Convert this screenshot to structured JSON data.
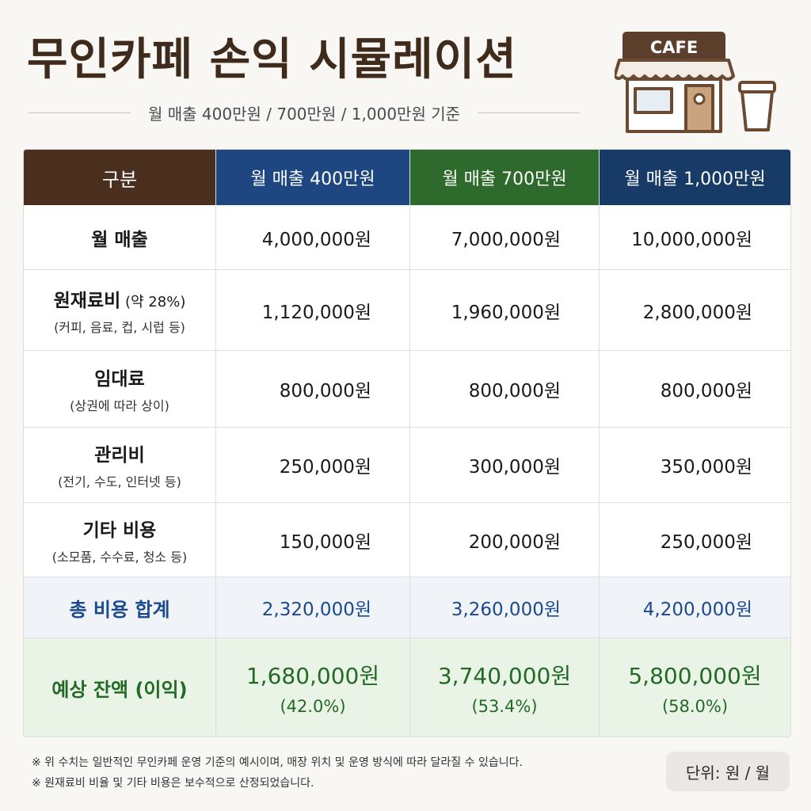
{
  "title": "무인카페 손익 시뮬레이션",
  "subtitle": "월 매출 400만원 / 700만원 / 1,000만원 기준",
  "cafe_sign": "CAFE",
  "table": {
    "headers": [
      "구분",
      "월 매출 400만원",
      "월 매출 700만원",
      "월 매출 1,000만원"
    ],
    "rows": [
      {
        "label": "월 매출",
        "paren": "",
        "note": "",
        "values": [
          "4,000,000원",
          "7,000,000원",
          "10,000,000원"
        ]
      },
      {
        "label": "원재료비",
        "paren": " (약 28%)",
        "note": "(커피, 음료, 컵, 시럽 등)",
        "values": [
          "1,120,000원",
          "1,960,000원",
          "2,800,000원"
        ]
      },
      {
        "label": "임대료",
        "paren": "",
        "note": "(상권에 따라 상이)",
        "values": [
          "800,000원",
          "800,000원",
          "800,000원"
        ]
      },
      {
        "label": "관리비",
        "paren": "",
        "note": "(전기, 수도, 인터넷 등)",
        "values": [
          "250,000원",
          "300,000원",
          "350,000원"
        ]
      },
      {
        "label": "기타 비용",
        "paren": "",
        "note": "(소모품, 수수료, 청소 등)",
        "values": [
          "150,000원",
          "200,000원",
          "250,000원"
        ]
      }
    ],
    "total": {
      "label": "총 비용 합계",
      "values": [
        "2,320,000원",
        "3,260,000원",
        "4,200,000원"
      ]
    },
    "profit": {
      "label": "예상 잔액",
      "label_paren": " (이익)",
      "values": [
        "1,680,000원",
        "3,740,000원",
        "5,800,000원"
      ],
      "percents": [
        "(42.0%)",
        "(53.4%)",
        "(58.0%)"
      ]
    }
  },
  "footnotes": [
    "※ 위 수치는 일반적인 무인카페 운영 기준의 예시이며, 매장 위치 및 운영 방식에 따라 달라질 수 있습니다.",
    "※ 원재료비 비율 및 기타 비용은 보수적으로 산정되었습니다."
  ],
  "unit": "단위: 원 / 월",
  "colors": {
    "title": "#3f2b1c",
    "header_label": "#4a2f1e",
    "header_400": "#1e4782",
    "header_700": "#2d6a2b",
    "header_1000": "#173b66",
    "total": "#1b4a8e",
    "profit": "#226a26"
  },
  "icons": [
    "cafe-storefront-icon",
    "coffee-cup-icon"
  ]
}
